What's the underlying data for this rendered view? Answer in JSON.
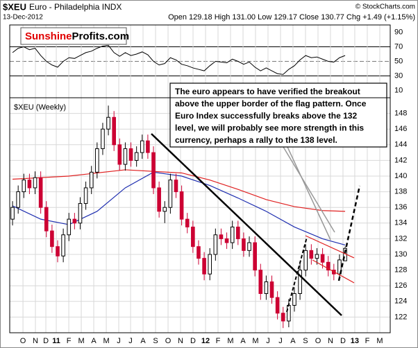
{
  "header": {
    "symbol": "$XEU",
    "name": "Euro - Philadelphia INDX",
    "date": "13-Dec-2012",
    "copyright": "© StockCharts.com",
    "quote": "Open 129.18  High 131.00  Low 129.17  Close 130.77  Chg +1.49 (+1.15%)"
  },
  "logo": {
    "part1": "Sunshine",
    "part2": "Profits.com"
  },
  "annotation": [
    "The euro appears to have verified the breakout",
    "above the upper border of the flag pattern. Once",
    "Euro Index successfully breaks above the 132",
    "level, we will probably see more strength in this",
    "currency, perhaps a rally to the 138 level."
  ],
  "chart_data": [
    {
      "type": "line",
      "color": "#000000",
      "x": [
        0,
        1,
        2,
        3,
        4,
        5,
        6,
        7,
        8,
        9,
        10,
        11,
        12,
        13,
        14,
        15,
        16,
        17,
        18,
        19,
        20,
        21,
        22,
        23,
        24,
        25,
        26,
        27,
        28,
        29,
        30,
        31,
        32,
        33,
        34,
        35,
        36,
        37,
        38,
        39,
        40,
        41,
        42,
        43,
        44,
        45,
        46,
        47,
        48,
        49,
        50,
        51,
        52,
        53,
        54,
        55,
        56,
        57,
        58,
        59
      ],
      "values": [
        62,
        68,
        70,
        66,
        68,
        58,
        50,
        45,
        42,
        50,
        55,
        54,
        58,
        62,
        64,
        68,
        71,
        72,
        62,
        57,
        62,
        58,
        60,
        63,
        59,
        50,
        45,
        47,
        55,
        52,
        46,
        44,
        41,
        39,
        37,
        44,
        50,
        49,
        48,
        53,
        50,
        46,
        49,
        42,
        37,
        41,
        37,
        33,
        32,
        39,
        44,
        52,
        58,
        55,
        56,
        53,
        50,
        49,
        55,
        58
      ],
      "xlim": [
        -0.5,
        67
      ],
      "ylim": [
        0,
        100
      ],
      "yticks": [
        10,
        30,
        50,
        70,
        90
      ],
      "levels": [
        {
          "value": 70
        },
        {
          "value": 50,
          "dashed": true
        },
        {
          "value": 30
        }
      ]
    },
    {
      "type": "candlestick",
      "label": "$XEU (Weekly)",
      "up_color": "#000000",
      "down_color": "#cc0033",
      "x": [
        0,
        1,
        2,
        3,
        4,
        5,
        6,
        7,
        8,
        9,
        10,
        11,
        12,
        13,
        14,
        15,
        16,
        17,
        18,
        19,
        20,
        21,
        22,
        23,
        24,
        25,
        26,
        27,
        28,
        29,
        30,
        31,
        32,
        33,
        34,
        35,
        36,
        37,
        38,
        39,
        40,
        41,
        42,
        43,
        44,
        45,
        46,
        47,
        48,
        49,
        50,
        51,
        52,
        53,
        54,
        55,
        56,
        57,
        58,
        59
      ],
      "open": [
        134.5,
        136.0,
        138.0,
        139.5,
        138.5,
        139.8,
        136.0,
        133.0,
        131.0,
        129.8,
        132.5,
        134.5,
        134.0,
        136.5,
        138.5,
        140.5,
        143.5,
        146.0,
        147.5,
        144.0,
        141.5,
        143.5,
        142.0,
        143.0,
        144.5,
        143.0,
        138.5,
        135.5,
        136.0,
        139.5,
        138.0,
        134.5,
        133.5,
        131.0,
        129.5,
        127.5,
        130.0,
        132.5,
        132.0,
        131.5,
        133.5,
        132.0,
        130.5,
        131.5,
        128.0,
        125.0,
        126.5,
        124.5,
        122.5,
        121.5,
        123.5,
        125.0,
        128.0,
        130.5,
        129.5,
        130.0,
        129.0,
        128.0,
        127.5,
        129.18
      ],
      "high": [
        136.8,
        138.8,
        140.3,
        140.3,
        140.6,
        140.6,
        136.8,
        133.8,
        131.8,
        133.3,
        135.3,
        135.3,
        137.3,
        139.3,
        141.3,
        144.3,
        146.8,
        149.0,
        148.3,
        144.8,
        144.3,
        144.3,
        143.8,
        145.3,
        145.3,
        143.8,
        139.3,
        136.8,
        140.3,
        140.3,
        138.8,
        135.3,
        134.3,
        131.8,
        130.3,
        130.8,
        133.3,
        133.3,
        132.8,
        134.3,
        134.3,
        132.8,
        132.3,
        132.3,
        128.8,
        127.3,
        127.3,
        125.3,
        123.3,
        124.3,
        125.8,
        128.8,
        131.3,
        131.3,
        130.8,
        130.8,
        129.8,
        128.8,
        130.0,
        131.0
      ],
      "low": [
        133.7,
        135.2,
        137.2,
        137.7,
        137.7,
        135.2,
        132.2,
        130.2,
        129.0,
        129.0,
        131.7,
        133.2,
        133.2,
        135.7,
        137.7,
        139.7,
        142.7,
        145.2,
        143.2,
        140.7,
        140.7,
        141.2,
        141.2,
        142.2,
        142.2,
        137.7,
        134.7,
        134.0,
        135.2,
        137.2,
        133.7,
        132.7,
        130.2,
        128.7,
        126.7,
        126.7,
        129.2,
        131.2,
        130.7,
        130.7,
        131.2,
        129.7,
        129.7,
        127.2,
        124.2,
        124.2,
        123.7,
        121.7,
        120.6,
        120.7,
        122.7,
        124.2,
        127.2,
        128.7,
        128.7,
        128.2,
        127.2,
        126.7,
        126.9,
        129.17
      ],
      "close": [
        136.0,
        138.0,
        139.5,
        138.5,
        139.8,
        136.0,
        133.0,
        131.0,
        129.8,
        132.5,
        134.5,
        134.0,
        136.5,
        138.5,
        140.5,
        143.5,
        146.0,
        147.5,
        144.0,
        141.5,
        143.5,
        142.0,
        143.0,
        144.5,
        143.0,
        138.5,
        135.5,
        136.0,
        139.5,
        138.0,
        134.5,
        133.5,
        131.0,
        129.5,
        127.5,
        130.0,
        132.5,
        132.0,
        131.5,
        133.5,
        132.0,
        130.5,
        131.5,
        128.0,
        125.0,
        126.5,
        124.5,
        122.5,
        121.5,
        123.5,
        125.0,
        128.0,
        130.5,
        129.5,
        130.0,
        129.0,
        128.0,
        127.5,
        129.3,
        130.77
      ],
      "overlays": [
        {
          "color": "#1f2fb0",
          "x": [
            0,
            5,
            10,
            15,
            20,
            25,
            30,
            35,
            40,
            45,
            50,
            55,
            59
          ],
          "values": [
            136.2,
            134.5,
            133.8,
            135.5,
            138.5,
            140.5,
            140.0,
            138.8,
            137.2,
            135.5,
            133.5,
            132.0,
            131.2
          ]
        },
        {
          "color": "#e02020",
          "x": [
            0,
            10,
            20,
            30,
            35,
            40,
            45,
            50,
            55,
            59
          ],
          "values": [
            139.6,
            140.0,
            140.8,
            140.4,
            139.5,
            138.3,
            137.0,
            136.1,
            135.6,
            135.5
          ]
        }
      ],
      "xlim": [
        -0.5,
        67
      ],
      "ylim": [
        120,
        150
      ],
      "yticks": [
        122,
        124,
        126,
        128,
        130,
        132,
        134,
        136,
        138,
        140,
        142,
        144,
        146,
        148
      ],
      "xticks": [
        {
          "value": 1.85,
          "label": "O"
        },
        {
          "value": 4.06,
          "label": "N"
        },
        {
          "value": 5.91,
          "label": "D"
        },
        {
          "value": 7.76,
          "label": "11"
        },
        {
          "value": 9.98,
          "label": "F"
        },
        {
          "value": 12.19,
          "label": "M"
        },
        {
          "value": 14.41,
          "label": "A"
        },
        {
          "value": 16.63,
          "label": "M"
        },
        {
          "value": 18.84,
          "label": "J"
        },
        {
          "value": 20.94,
          "label": "J"
        },
        {
          "value": 23.15,
          "label": "A"
        },
        {
          "value": 25.37,
          "label": "S"
        },
        {
          "value": 27.59,
          "label": "O"
        },
        {
          "value": 29.8,
          "label": "N"
        },
        {
          "value": 32.02,
          "label": "D"
        },
        {
          "value": 34.24,
          "label": "12"
        },
        {
          "value": 36.45,
          "label": "F"
        },
        {
          "value": 38.67,
          "label": "M"
        },
        {
          "value": 40.89,
          "label": "A"
        },
        {
          "value": 43.1,
          "label": "M"
        },
        {
          "value": 45.32,
          "label": "J"
        },
        {
          "value": 47.54,
          "label": "J"
        },
        {
          "value": 49.75,
          "label": "A"
        },
        {
          "value": 51.97,
          "label": "S"
        },
        {
          "value": 54.19,
          "label": "O"
        },
        {
          "value": 56.4,
          "label": "N"
        },
        {
          "value": 58.62,
          "label": "D"
        },
        {
          "value": 60.71,
          "label": "13"
        },
        {
          "value": 62.93,
          "label": "F"
        },
        {
          "value": 65.15,
          "label": "M"
        }
      ],
      "grid": true
    }
  ]
}
